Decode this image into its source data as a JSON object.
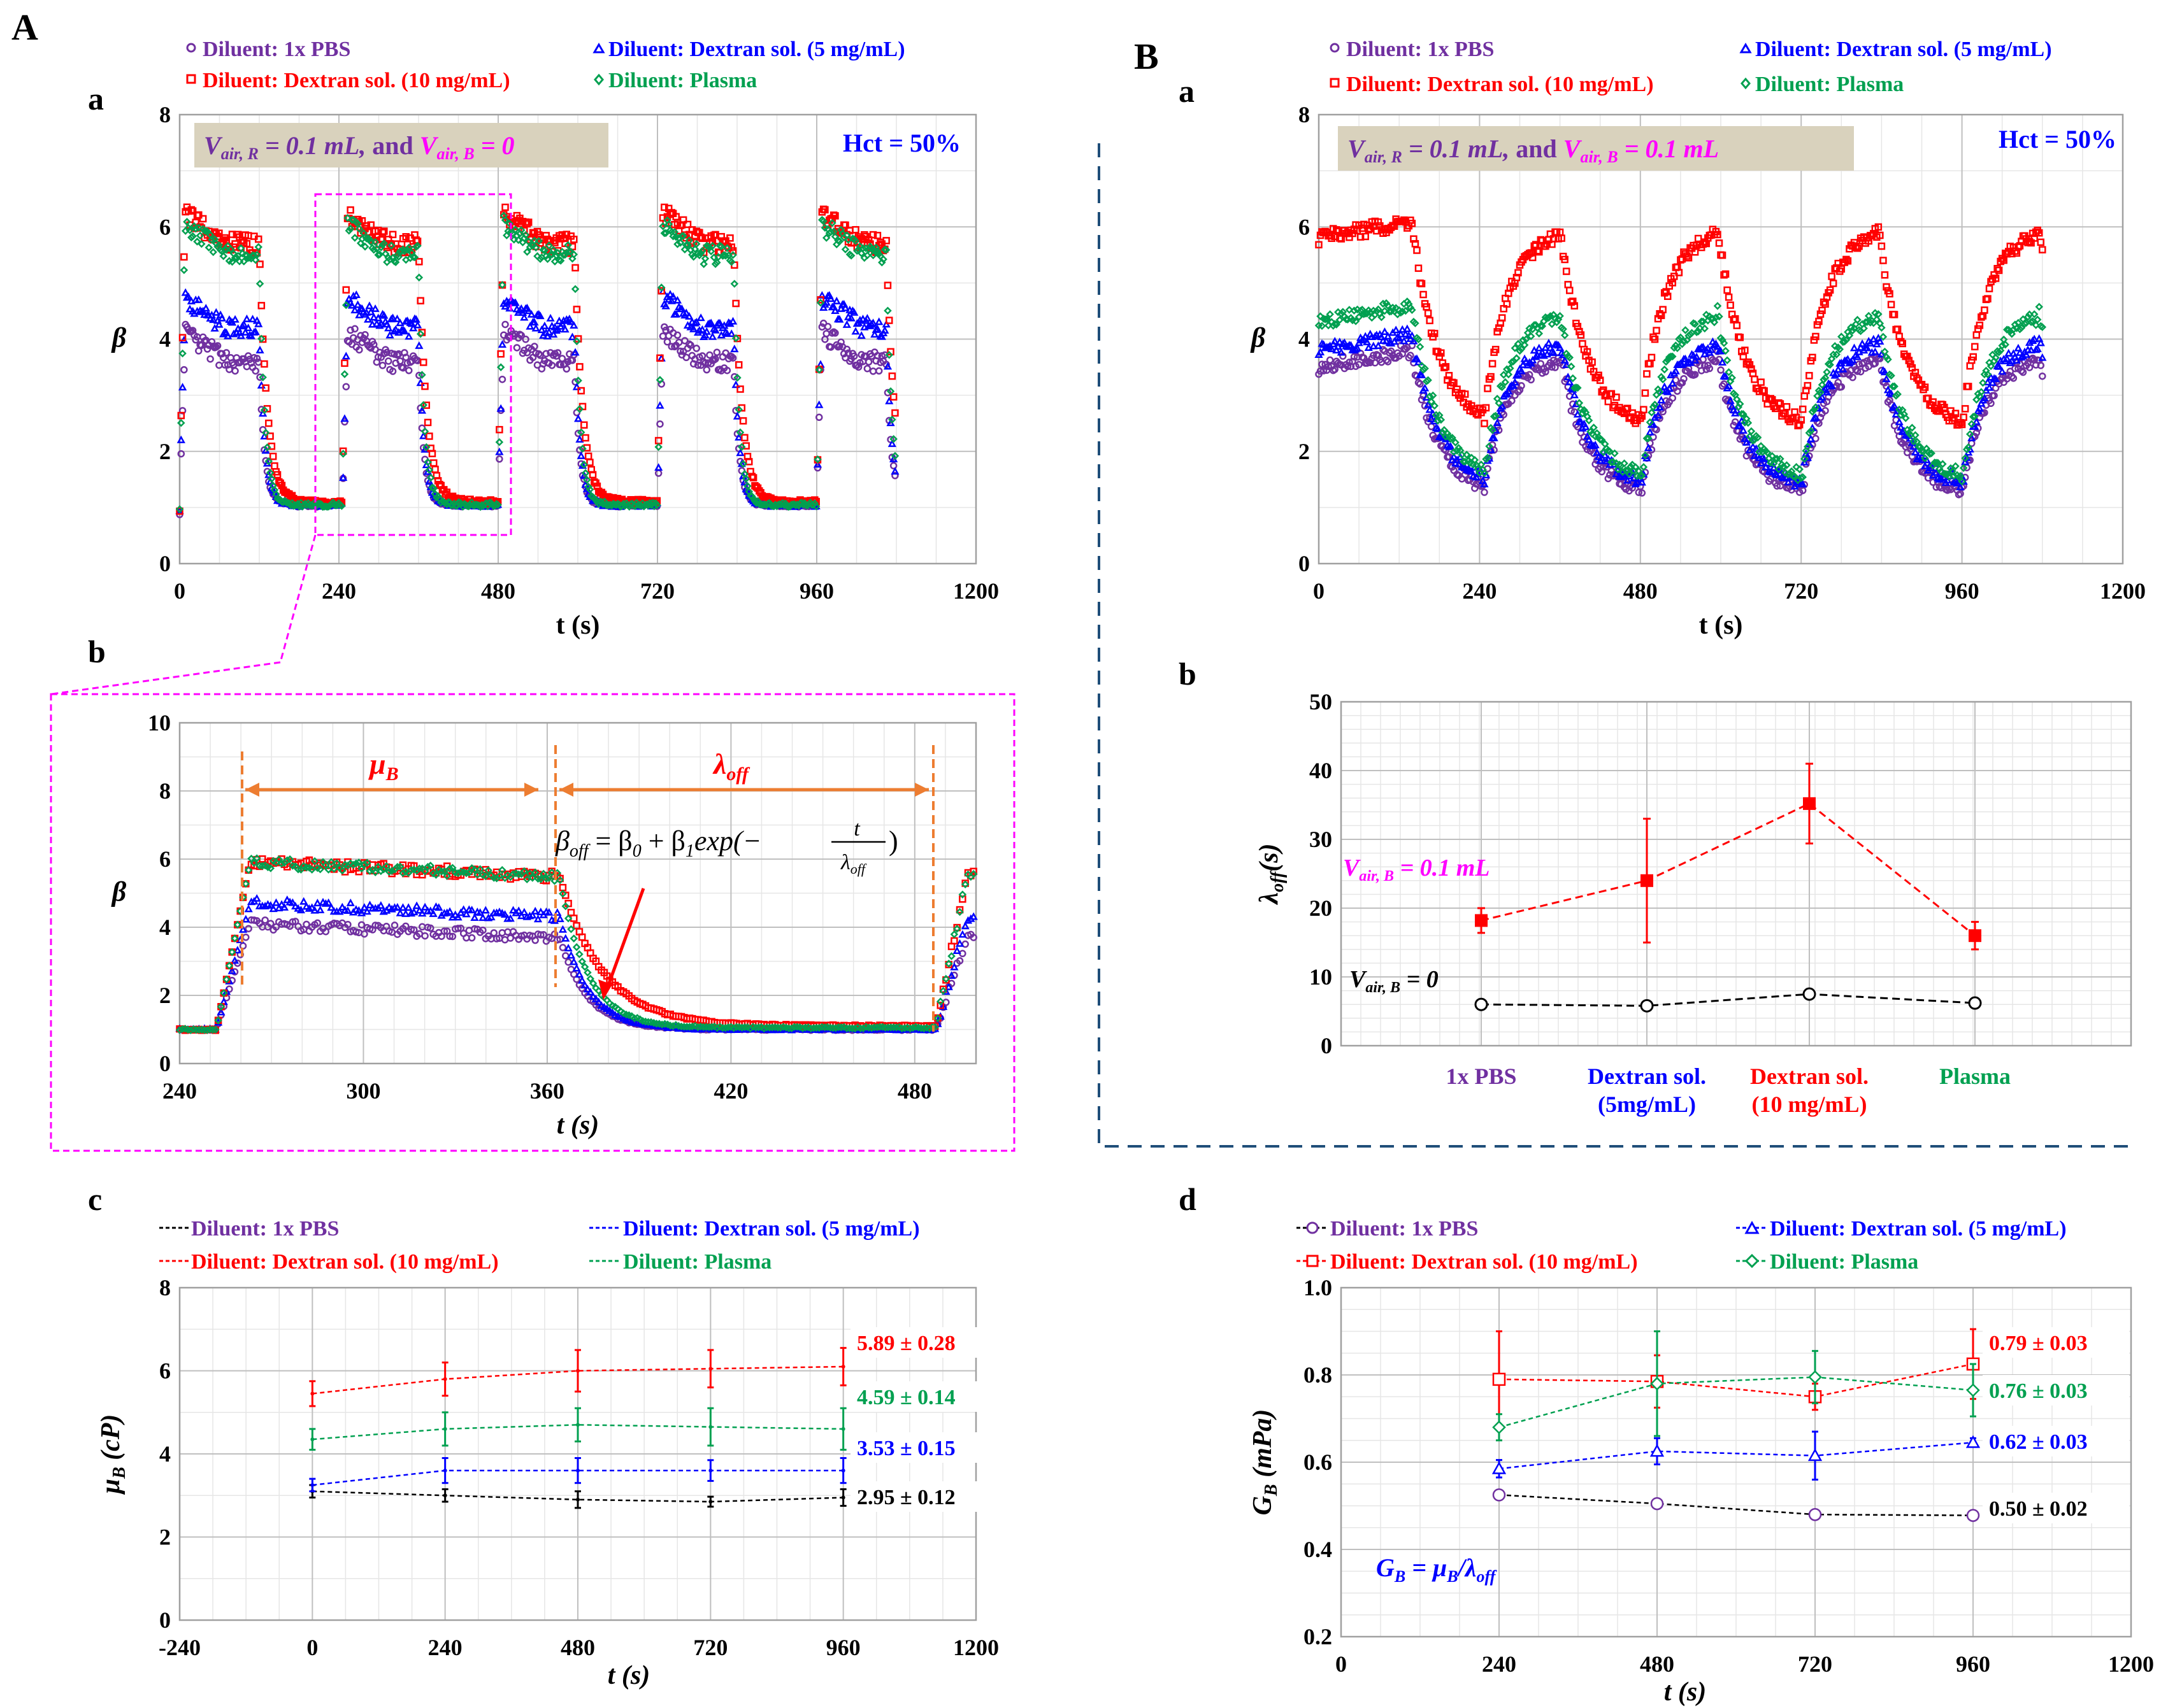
{
  "panels": {
    "A": "A",
    "B": "B",
    "Aa": "a",
    "Ab": "b",
    "Ac": "c",
    "Ba": "a",
    "Bb": "b",
    "Bd": "d"
  },
  "colors": {
    "pbs": "#7030a0",
    "dex5": "#0000ff",
    "dex10": "#ff0000",
    "plasma": "#00a050",
    "magenta": "#ff00ff",
    "orange": "#ed7d31",
    "note_bg": "#d9d2bd",
    "grid": "#d0d0d0",
    "dashed_divider": "#1f4e79"
  },
  "legend": {
    "pbs": "Diluent: 1x PBS",
    "dex5": "Diluent: Dextran sol. (5 mg/mL)",
    "dex10": "Diluent: Dextran sol. (10 mg/mL)",
    "plasma": "Diluent: Plasma"
  },
  "texts": {
    "Aa_note_left": "V",
    "Aa_note": "Vair, R = 0.1 mL,  and Vair, B = 0",
    "Aa_note_p1": "V",
    "Aa_note_s1": "air, R",
    "Aa_note_p2": " = 0.1 mL,",
    "Aa_note_p3": "  and ",
    "Aa_note_p4": "V",
    "Aa_note_s2": "air, B",
    "Aa_note_p5": " = 0",
    "Ba_note_p5": " = 0.1 mL",
    "hct": "Hct = 50%",
    "Ab_mu": "μ",
    "Ab_mu_sub": "B",
    "Ab_lambda": "λ",
    "Ab_lambda_sub": "off",
    "Ab_equation": "β_off = β_0 + β_1 exp(−t/λ_off)",
    "eq_beta": "β",
    "eq_off": "off",
    "eq_mid": " = β",
    "eq_0": "0",
    "eq_plus": " + β",
    "eq_1": "1",
    "eq_exp": "exp(−",
    "eq_t": "t",
    "eq_close": ")",
    "Bb_vair_red": "Vair, B = 0.1 mL",
    "Bb_vair_black": "Vair, B = 0",
    "Bb_V": "V",
    "Bb_sub": "air, B",
    "Bb_red_tail": " = 0.1 mL",
    "Bb_black_tail": " = 0",
    "Bd_formula": "GB = μB/λoff",
    "Bd_G": "G",
    "Bd_eq": " = μ",
    "Bd_slash": "/λ",
    "Bd_B": "B",
    "Bd_off": "off"
  },
  "axes": {
    "beta": "β",
    "t_s": "t (s)",
    "lambda_label": "λ",
    "lambda_sub": "off",
    "lambda_tail": "(s)",
    "mu_label": "μ",
    "mu_sub": "B",
    "mu_tail": " (cP)",
    "G_label": "G",
    "G_sub": "B",
    "G_tail": " (mPa)"
  },
  "chart_data": [
    {
      "id": "A-a",
      "type": "scatter",
      "title": "",
      "xlabel": "t (s)",
      "ylabel": "β",
      "xlim": [
        0,
        1200
      ],
      "ylim": [
        0,
        8
      ],
      "xticks": [
        "0",
        "240",
        "480",
        "720",
        "960",
        "1200"
      ],
      "yticks": [
        "0",
        "2",
        "4",
        "6",
        "8"
      ],
      "series": [
        {
          "name": "Diluent: 1x PBS",
          "plateau": 3.6,
          "baseline": 1.05
        },
        {
          "name": "Diluent: Dextran sol. (5 mg/mL)",
          "plateau": 4.2,
          "baseline": 1.05
        },
        {
          "name": "Diluent: Dextran sol. (10 mg/mL)",
          "plateau": 5.7,
          "baseline": 1.1
        },
        {
          "name": "Diluent: Plasma",
          "plateau": 5.5,
          "baseline": 1.05
        }
      ]
    },
    {
      "id": "A-b",
      "type": "scatter",
      "xlabel": "t (s)",
      "ylabel": "β",
      "xlim": [
        240,
        500
      ],
      "ylim": [
        0,
        10
      ],
      "xticks": [
        "240",
        "300",
        "360",
        "420",
        "480"
      ],
      "yticks": [
        "0",
        "2",
        "4",
        "6",
        "8",
        "10"
      ],
      "series": [
        {
          "name": "Diluent: 1x PBS",
          "plateau": 3.7,
          "baseline": 1.0
        },
        {
          "name": "Diluent: Dextran sol. (5 mg/mL)",
          "plateau": 4.3,
          "baseline": 1.0
        },
        {
          "name": "Diluent: Dextran sol. (10 mg/mL)",
          "plateau": 5.5,
          "baseline": 1.1
        },
        {
          "name": "Diluent: Plasma",
          "plateau": 5.5,
          "baseline": 1.05
        }
      ]
    },
    {
      "id": "A-c",
      "type": "line",
      "xlabel": "t (s)",
      "ylabel": "μB (cP)",
      "xlim": [
        -240,
        1200
      ],
      "ylim": [
        0,
        8
      ],
      "xticks": [
        "-240",
        "0",
        "240",
        "480",
        "720",
        "960",
        "1200"
      ],
      "yticks": [
        "0",
        "2",
        "4",
        "6",
        "8"
      ],
      "x": [
        0,
        240,
        480,
        720,
        960
      ],
      "series": [
        {
          "name": "Diluent: 1x PBS",
          "values": [
            3.1,
            3.0,
            2.9,
            2.85,
            2.95
          ],
          "err": [
            0.15,
            0.15,
            0.2,
            0.12,
            0.2
          ],
          "label": "2.95 ± 0.12"
        },
        {
          "name": "Diluent: Dextran sol. (5 mg/mL)",
          "values": [
            3.25,
            3.6,
            3.6,
            3.6,
            3.6
          ],
          "err": [
            0.15,
            0.3,
            0.3,
            0.25,
            0.3
          ],
          "label": "3.53  ± 0.15"
        },
        {
          "name": "Diluent: Dextran sol. (10 mg/mL)",
          "values": [
            5.45,
            5.8,
            6.0,
            6.05,
            6.1
          ],
          "err": [
            0.3,
            0.4,
            0.5,
            0.45,
            0.45
          ],
          "label": "5.89 ±  0.28"
        },
        {
          "name": "Diluent: Plasma",
          "values": [
            4.35,
            4.6,
            4.7,
            4.65,
            4.6
          ],
          "err": [
            0.25,
            0.4,
            0.4,
            0.45,
            0.5
          ],
          "label": "4.59  ± 0.14"
        }
      ]
    },
    {
      "id": "B-a",
      "type": "scatter",
      "xlabel": "t (s)",
      "ylabel": "β",
      "xlim": [
        0,
        1200
      ],
      "ylim": [
        0,
        8
      ],
      "xticks": [
        "0",
        "240",
        "480",
        "720",
        "960",
        "1200"
      ],
      "yticks": [
        "0",
        "2",
        "4",
        "6",
        "8"
      ],
      "series": [
        {
          "name": "Diluent: 1x PBS",
          "peak": 3.7,
          "trough": 1.2
        },
        {
          "name": "Diluent: Dextran sol. (5 mg/mL)",
          "peak": 4.0,
          "trough": 1.35
        },
        {
          "name": "Diluent: Dextran sol. (10 mg/mL)",
          "peak": 6.0,
          "trough": 2.4
        },
        {
          "name": "Diluent: Plasma",
          "peak": 4.5,
          "trough": 1.45
        }
      ]
    },
    {
      "id": "B-b",
      "type": "line",
      "xlabel": "",
      "ylabel": "λoff(s)",
      "ylim": [
        0,
        50
      ],
      "yticks": [
        "0",
        "10",
        "20",
        "30",
        "40",
        "50"
      ],
      "categories": [
        "1x PBS",
        "Dextran sol.\n(5mg/mL)",
        "Dextran sol.\n(10 mg/mL)",
        "Plasma"
      ],
      "category_lines": [
        [
          "1x PBS"
        ],
        [
          "Dextran sol.",
          "(5mg/mL)"
        ],
        [
          "Dextran sol.",
          "(10 mg/mL)"
        ],
        [
          "Plasma"
        ]
      ],
      "series": [
        {
          "name": "Vair, B = 0.1 mL",
          "values": [
            18.2,
            24.0,
            35.2,
            16.0
          ],
          "err": [
            1.8,
            9.0,
            5.8,
            2.0
          ]
        },
        {
          "name": "Vair, B = 0",
          "values": [
            6.0,
            5.8,
            7.5,
            6.2
          ],
          "err": [
            0.4,
            0.4,
            0.6,
            0.4
          ]
        }
      ]
    },
    {
      "id": "B-d",
      "type": "line",
      "xlabel": "t (s)",
      "ylabel": "GB (mPa)",
      "xlim": [
        0,
        1200
      ],
      "ylim": [
        0.2,
        1.0
      ],
      "xticks": [
        "0",
        "240",
        "480",
        "720",
        "960",
        "1200"
      ],
      "yticks": [
        "0.2",
        "0.4",
        "0.6",
        "0.8",
        "1.0"
      ],
      "x": [
        240,
        480,
        720,
        960
      ],
      "series": [
        {
          "name": "Diluent: 1x PBS",
          "values": [
            0.525,
            0.505,
            0.48,
            0.478
          ],
          "err": [
            0.005,
            0.005,
            0.005,
            0.005
          ],
          "label": "0.50 ± 0.02"
        },
        {
          "name": "Diluent: Dextran sol. (5 mg/mL)",
          "values": [
            0.585,
            0.625,
            0.615,
            0.645
          ],
          "err": [
            0.02,
            0.03,
            0.055,
            0.01
          ],
          "label": "0.62  ± 0.03"
        },
        {
          "name": "Diluent: Dextran sol. (10 mg/mL)",
          "values": [
            0.79,
            0.785,
            0.75,
            0.825
          ],
          "err": [
            0.11,
            0.06,
            0.03,
            0.08
          ],
          "label": "0.79 ±  0.03"
        },
        {
          "name": "Diluent: Plasma",
          "values": [
            0.68,
            0.78,
            0.795,
            0.765
          ],
          "err": [
            0.03,
            0.12,
            0.06,
            0.06
          ],
          "label": "0.76  ± 0.03"
        }
      ]
    }
  ]
}
